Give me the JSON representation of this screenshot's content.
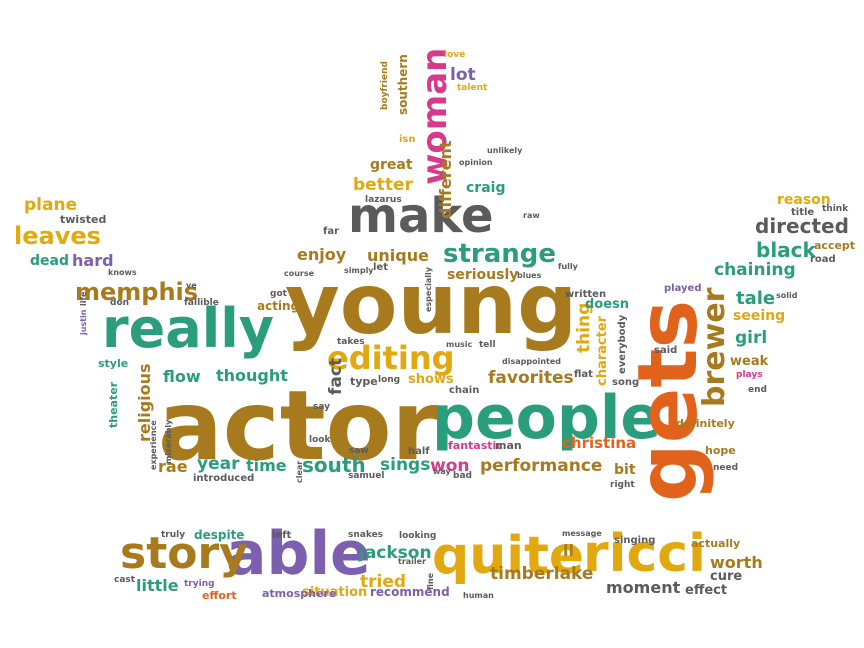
{
  "words": [
    {
      "text": "actor",
      "color": "#a77a1e",
      "size": 96,
      "rotate": false
    },
    {
      "text": "young",
      "color": "#a77a1e",
      "size": 84,
      "rotate": false
    },
    {
      "text": "people",
      "color": "#2a9d7c",
      "size": 60,
      "rotate": false
    },
    {
      "text": "gets",
      "color": "#e1621b",
      "size": 82,
      "rotate": true
    },
    {
      "text": "really",
      "color": "#2a9d7c",
      "size": 54,
      "rotate": false
    },
    {
      "text": "make",
      "color": "#5b5b5b",
      "size": 48,
      "rotate": false
    },
    {
      "text": "able",
      "color": "#7c5fae",
      "size": 60,
      "rotate": false
    },
    {
      "text": "quite",
      "color": "#e1a80f",
      "size": 52,
      "rotate": false
    },
    {
      "text": "ricci",
      "color": "#e1a80f",
      "size": 52,
      "rotate": false
    },
    {
      "text": "story",
      "color": "#a77a1e",
      "size": 44,
      "rotate": false
    },
    {
      "text": "woman",
      "color": "#d53a8b",
      "size": 34,
      "rotate": true
    },
    {
      "text": "editing",
      "color": "#e1a80f",
      "size": 32,
      "rotate": false
    },
    {
      "text": "brewer",
      "color": "#a77a1e",
      "size": 30,
      "rotate": true
    },
    {
      "text": "strange",
      "color": "#2a9d7c",
      "size": 26,
      "rotate": false
    },
    {
      "text": "memphis",
      "color": "#a77a1e",
      "size": 24,
      "rotate": false
    },
    {
      "text": "leaves",
      "color": "#e1a80f",
      "size": 24,
      "rotate": false
    },
    {
      "text": "directed",
      "color": "#5b5b5b",
      "size": 20,
      "rotate": false
    },
    {
      "text": "black",
      "color": "#2a9d7c",
      "size": 20,
      "rotate": false
    },
    {
      "text": "chaining",
      "color": "#2a9d7c",
      "size": 17,
      "rotate": false
    },
    {
      "text": "tale",
      "color": "#2a9d7c",
      "size": 18,
      "rotate": false
    },
    {
      "text": "seeing",
      "color": "#e1a80f",
      "size": 14,
      "rotate": false
    },
    {
      "text": "girl",
      "color": "#2a9d7c",
      "size": 17,
      "rotate": false
    },
    {
      "text": "weak",
      "color": "#a77a1e",
      "size": 13,
      "rotate": false
    },
    {
      "text": "plays",
      "color": "#d53a8b",
      "size": 9,
      "rotate": false
    },
    {
      "text": "end",
      "color": "#5b5b5b",
      "size": 9,
      "rotate": false
    },
    {
      "text": "definitely",
      "color": "#a77a1e",
      "size": 11,
      "rotate": false
    },
    {
      "text": "hope",
      "color": "#a77a1e",
      "size": 11,
      "rotate": false
    },
    {
      "text": "need",
      "color": "#5b5b5b",
      "size": 9,
      "rotate": false
    },
    {
      "text": "reason",
      "color": "#e1a80f",
      "size": 14,
      "rotate": false
    },
    {
      "text": "think",
      "color": "#5b5b5b",
      "size": 9,
      "rotate": false
    },
    {
      "text": "title",
      "color": "#5b5b5b",
      "size": 10,
      "rotate": false
    },
    {
      "text": "accept",
      "color": "#a77a1e",
      "size": 11,
      "rotate": false
    },
    {
      "text": "road",
      "color": "#5b5b5b",
      "size": 10,
      "rotate": false
    },
    {
      "text": "solid",
      "color": "#5b5b5b",
      "size": 8,
      "rotate": false
    },
    {
      "text": "played",
      "color": "#7c5fae",
      "size": 10,
      "rotate": false
    },
    {
      "text": "said",
      "color": "#5b5b5b",
      "size": 10,
      "rotate": false
    },
    {
      "text": "everybody",
      "color": "#5b5b5b",
      "size": 10,
      "rotate": true
    },
    {
      "text": "song",
      "color": "#5b5b5b",
      "size": 10,
      "rotate": false
    },
    {
      "text": "character",
      "color": "#e1a80f",
      "size": 13,
      "rotate": true
    },
    {
      "text": "thing",
      "color": "#e1a80f",
      "size": 17,
      "rotate": true
    },
    {
      "text": "doesn",
      "color": "#2a9d7c",
      "size": 13,
      "rotate": false
    },
    {
      "text": "written",
      "color": "#5b5b5b",
      "size": 10,
      "rotate": false
    },
    {
      "text": "flat",
      "color": "#5b5b5b",
      "size": 10,
      "rotate": false
    },
    {
      "text": "christina",
      "color": "#e1621b",
      "size": 15,
      "rotate": false
    },
    {
      "text": "bit",
      "color": "#a77a1e",
      "size": 14,
      "rotate": false
    },
    {
      "text": "right",
      "color": "#5b5b5b",
      "size": 9,
      "rotate": false
    },
    {
      "text": "performance",
      "color": "#a77a1e",
      "size": 17,
      "rotate": false
    },
    {
      "text": "won",
      "color": "#d53a8b",
      "size": 17,
      "rotate": false
    },
    {
      "text": "sings",
      "color": "#2a9d7c",
      "size": 17,
      "rotate": false
    },
    {
      "text": "south",
      "color": "#2a9d7c",
      "size": 20,
      "rotate": false
    },
    {
      "text": "time",
      "color": "#2a9d7c",
      "size": 16,
      "rotate": false
    },
    {
      "text": "year",
      "color": "#2a9d7c",
      "size": 17,
      "rotate": false
    },
    {
      "text": "rae",
      "color": "#a77a1e",
      "size": 16,
      "rotate": false
    },
    {
      "text": "introduced",
      "color": "#5b5b5b",
      "size": 10,
      "rotate": false
    },
    {
      "text": "clear",
      "color": "#5b5b5b",
      "size": 8,
      "rotate": true
    },
    {
      "text": "saw",
      "color": "#5b5b5b",
      "size": 9,
      "rotate": false
    },
    {
      "text": "samuel",
      "color": "#5b5b5b",
      "size": 9,
      "rotate": false
    },
    {
      "text": "half",
      "color": "#5b5b5b",
      "size": 10,
      "rotate": false
    },
    {
      "text": "fantastic",
      "color": "#d53a8b",
      "size": 11,
      "rotate": false
    },
    {
      "text": "man",
      "color": "#5b5b5b",
      "size": 11,
      "rotate": false
    },
    {
      "text": "way",
      "color": "#5b5b5b",
      "size": 8,
      "rotate": false
    },
    {
      "text": "bad",
      "color": "#5b5b5b",
      "size": 9,
      "rotate": false
    },
    {
      "text": "look",
      "color": "#5b5b5b",
      "size": 9,
      "rotate": false
    },
    {
      "text": "say",
      "color": "#5b5b5b",
      "size": 9,
      "rotate": false
    },
    {
      "text": "religious",
      "color": "#a77a1e",
      "size": 16,
      "rotate": true
    },
    {
      "text": "theater",
      "color": "#2a9d7c",
      "size": 11,
      "rotate": true
    },
    {
      "text": "experience",
      "color": "#5b5b5b",
      "size": 8,
      "rotate": true
    },
    {
      "text": "miserably",
      "color": "#5b5b5b",
      "size": 8,
      "rotate": true
    },
    {
      "text": "style",
      "color": "#2a9d7c",
      "size": 11,
      "rotate": false
    },
    {
      "text": "flow",
      "color": "#2a9d7c",
      "size": 16,
      "rotate": false
    },
    {
      "text": "thought",
      "color": "#2a9d7c",
      "size": 16,
      "rotate": false
    },
    {
      "text": "fact",
      "color": "#5b5b5b",
      "size": 17,
      "rotate": true
    },
    {
      "text": "type",
      "color": "#5b5b5b",
      "size": 11,
      "rotate": false
    },
    {
      "text": "long",
      "color": "#5b5b5b",
      "size": 9,
      "rotate": false
    },
    {
      "text": "shows",
      "color": "#e1a80f",
      "size": 13,
      "rotate": false
    },
    {
      "text": "favorites",
      "color": "#a77a1e",
      "size": 17,
      "rotate": false
    },
    {
      "text": "chain",
      "color": "#5b5b5b",
      "size": 10,
      "rotate": false
    },
    {
      "text": "disappointed",
      "color": "#5b5b5b",
      "size": 8,
      "rotate": false
    },
    {
      "text": "music",
      "color": "#5b5b5b",
      "size": 8,
      "rotate": false
    },
    {
      "text": "tell",
      "color": "#5b5b5b",
      "size": 9,
      "rotate": false
    },
    {
      "text": "takes",
      "color": "#5b5b5b",
      "size": 9,
      "rotate": false
    },
    {
      "text": "acting",
      "color": "#a77a1e",
      "size": 12,
      "rotate": false
    },
    {
      "text": "got",
      "color": "#5b5b5b",
      "size": 9,
      "rotate": false
    },
    {
      "text": "fallible",
      "color": "#5b5b5b",
      "size": 9,
      "rotate": false
    },
    {
      "text": "don",
      "color": "#5b5b5b",
      "size": 9,
      "rotate": false
    },
    {
      "text": "ve",
      "color": "#5b5b5b",
      "size": 8,
      "rotate": false
    },
    {
      "text": "life",
      "color": "#5b5b5b",
      "size": 8,
      "rotate": true
    },
    {
      "text": "justin",
      "color": "#7c5fae",
      "size": 8,
      "rotate": true
    },
    {
      "text": "enjoy",
      "color": "#a77a1e",
      "size": 16,
      "rotate": false
    },
    {
      "text": "unique",
      "color": "#a77a1e",
      "size": 16,
      "rotate": false
    },
    {
      "text": "let",
      "color": "#5b5b5b",
      "size": 10,
      "rotate": false
    },
    {
      "text": "seriously",
      "color": "#a77a1e",
      "size": 14,
      "rotate": false
    },
    {
      "text": "blues",
      "color": "#5b5b5b",
      "size": 8,
      "rotate": false
    },
    {
      "text": "especially",
      "color": "#5b5b5b",
      "size": 8,
      "rotate": true
    },
    {
      "text": "simply",
      "color": "#5b5b5b",
      "size": 8,
      "rotate": false
    },
    {
      "text": "course",
      "color": "#5b5b5b",
      "size": 8,
      "rotate": false
    },
    {
      "text": "fully",
      "color": "#5b5b5b",
      "size": 8,
      "rotate": false
    },
    {
      "text": "far",
      "color": "#5b5b5b",
      "size": 10,
      "rotate": false
    },
    {
      "text": "raw",
      "color": "#5b5b5b",
      "size": 8,
      "rotate": false
    },
    {
      "text": "better",
      "color": "#e1a80f",
      "size": 17,
      "rotate": false
    },
    {
      "text": "lazarus",
      "color": "#5b5b5b",
      "size": 9,
      "rotate": false
    },
    {
      "text": "craig",
      "color": "#2a9d7c",
      "size": 14,
      "rotate": false
    },
    {
      "text": "great",
      "color": "#a77a1e",
      "size": 14,
      "rotate": false
    },
    {
      "text": "different",
      "color": "#a77a1e",
      "size": 16,
      "rotate": true
    },
    {
      "text": "unlikely",
      "color": "#5b5b5b",
      "size": 8,
      "rotate": false
    },
    {
      "text": "opinion",
      "color": "#5b5b5b",
      "size": 8,
      "rotate": false
    },
    {
      "text": "isn",
      "color": "#e1a80f",
      "size": 10,
      "rotate": false
    },
    {
      "text": "southern",
      "color": "#a77a1e",
      "size": 12,
      "rotate": true
    },
    {
      "text": "boyfriend",
      "color": "#a77a1e",
      "size": 9,
      "rotate": true
    },
    {
      "text": "love",
      "color": "#e1a80f",
      "size": 9,
      "rotate": false
    },
    {
      "text": "lot",
      "color": "#7c5fae",
      "size": 17,
      "rotate": false
    },
    {
      "text": "talent",
      "color": "#e1a80f",
      "size": 9,
      "rotate": false
    },
    {
      "text": "plane",
      "color": "#e1a80f",
      "size": 17,
      "rotate": false
    },
    {
      "text": "twisted",
      "color": "#5b5b5b",
      "size": 11,
      "rotate": false
    },
    {
      "text": "dead",
      "color": "#2a9d7c",
      "size": 14,
      "rotate": false
    },
    {
      "text": "hard",
      "color": "#7c5fae",
      "size": 16,
      "rotate": false
    },
    {
      "text": "knows",
      "color": "#5b5b5b",
      "size": 8,
      "rotate": false
    },
    {
      "text": "truly",
      "color": "#5b5b5b",
      "size": 9,
      "rotate": false
    },
    {
      "text": "despite",
      "color": "#2a9d7c",
      "size": 12,
      "rotate": false
    },
    {
      "text": "left",
      "color": "#5b5b5b",
      "size": 10,
      "rotate": false
    },
    {
      "text": "snakes",
      "color": "#5b5b5b",
      "size": 9,
      "rotate": false
    },
    {
      "text": "looking",
      "color": "#5b5b5b",
      "size": 9,
      "rotate": false
    },
    {
      "text": "jackson",
      "color": "#2a9d7c",
      "size": 17,
      "rotate": false
    },
    {
      "text": "trailer",
      "color": "#5b5b5b",
      "size": 8,
      "rotate": false
    },
    {
      "text": "tried",
      "color": "#e1a80f",
      "size": 17,
      "rotate": false
    },
    {
      "text": "fine",
      "color": "#5b5b5b",
      "size": 8,
      "rotate": true
    },
    {
      "text": "ll",
      "color": "#a77a1e",
      "size": 16,
      "rotate": false
    },
    {
      "text": "message",
      "color": "#5b5b5b",
      "size": 8,
      "rotate": false
    },
    {
      "text": "singing",
      "color": "#5b5b5b",
      "size": 10,
      "rotate": false
    },
    {
      "text": "actually",
      "color": "#a77a1e",
      "size": 11,
      "rotate": false
    },
    {
      "text": "worth",
      "color": "#a77a1e",
      "size": 16,
      "rotate": false
    },
    {
      "text": "cure",
      "color": "#5b5b5b",
      "size": 13,
      "rotate": false
    },
    {
      "text": "moment",
      "color": "#5b5b5b",
      "size": 16,
      "rotate": false
    },
    {
      "text": "effect",
      "color": "#5b5b5b",
      "size": 13,
      "rotate": false
    },
    {
      "text": "timberlake",
      "color": "#a77a1e",
      "size": 17,
      "rotate": false
    },
    {
      "text": "human",
      "color": "#5b5b5b",
      "size": 8,
      "rotate": false
    },
    {
      "text": "recommend",
      "color": "#7c5fae",
      "size": 12,
      "rotate": false
    },
    {
      "text": "situation",
      "color": "#e1a80f",
      "size": 13,
      "rotate": false
    },
    {
      "text": "atmosphere",
      "color": "#7c5fae",
      "size": 11,
      "rotate": false
    },
    {
      "text": "effort",
      "color": "#e1621b",
      "size": 11,
      "rotate": false
    },
    {
      "text": "little",
      "color": "#2a9d7c",
      "size": 16,
      "rotate": false
    },
    {
      "text": "cast",
      "color": "#5b5b5b",
      "size": 9,
      "rotate": false
    },
    {
      "text": "trying",
      "color": "#7c5fae",
      "size": 9,
      "rotate": false
    }
  ]
}
